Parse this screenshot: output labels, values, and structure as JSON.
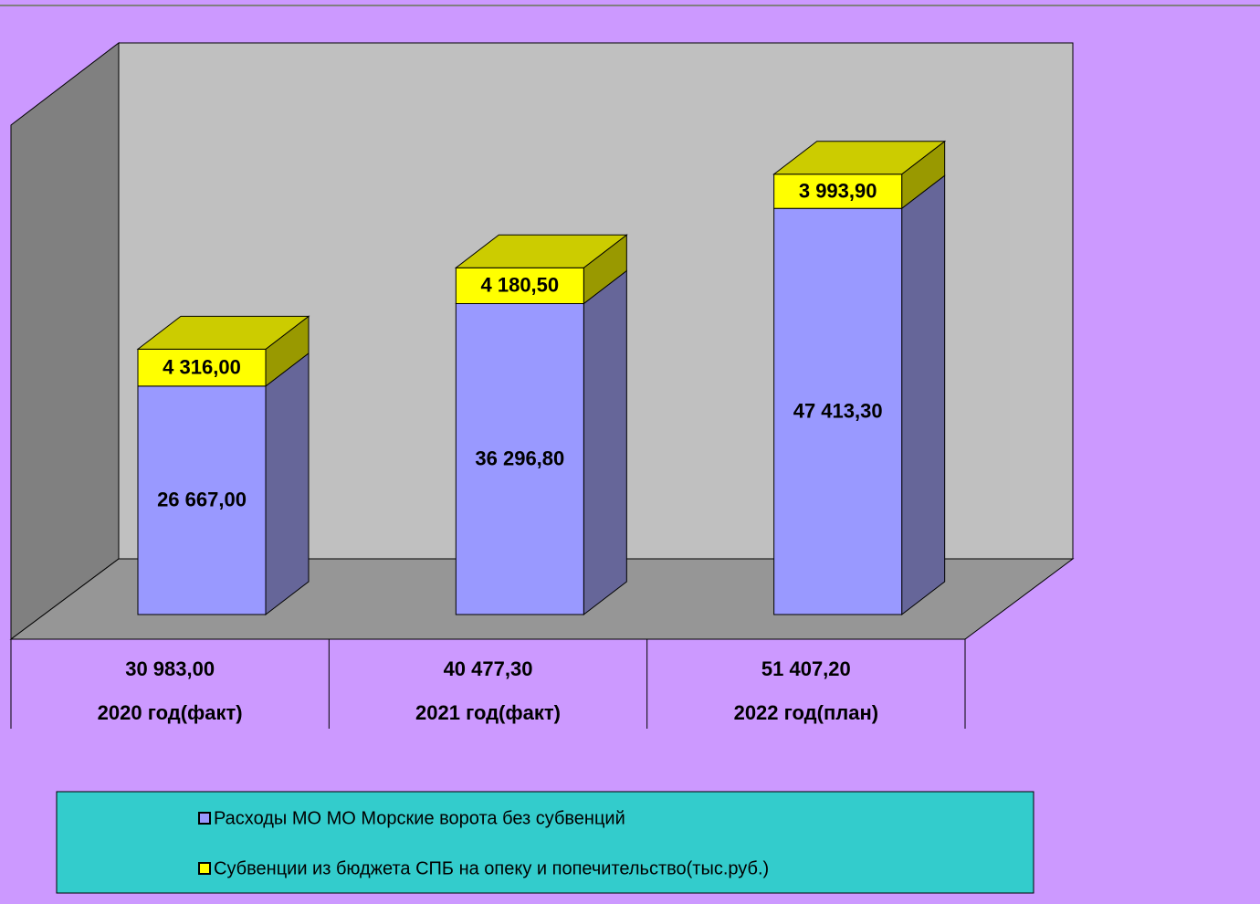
{
  "chart_data": {
    "type": "bar",
    "stacked": true,
    "three_d": true,
    "categories": [
      "2020 год(факт)",
      "2021 год(факт)",
      "2022 год(план)"
    ],
    "category_totals": [
      30983,
      40477.3,
      51407.2
    ],
    "category_total_labels": [
      "30 983,00",
      "40 477,30",
      "51 407,20"
    ],
    "series": [
      {
        "name": "Расходы МО МО Морские ворота без субвенций",
        "color": "#9999ff",
        "side_color": "#666699",
        "values": [
          26667,
          36296.8,
          47413.3
        ],
        "value_labels": [
          "26 667,00",
          "36 296,80",
          "47 413,30"
        ]
      },
      {
        "name": "Субвенции из бюджета СПБ на опеку и попечительство(тыс.руб.)",
        "color": "#ffff00",
        "side_color": "#999900",
        "top_color": "#cccc00",
        "values": [
          4316,
          4180.5,
          3993.9
        ],
        "value_labels": [
          "4 316,00",
          "4 180,50",
          "3 993,90"
        ]
      }
    ],
    "ylim": [
      0,
      63000
    ],
    "legend": "bottom"
  }
}
